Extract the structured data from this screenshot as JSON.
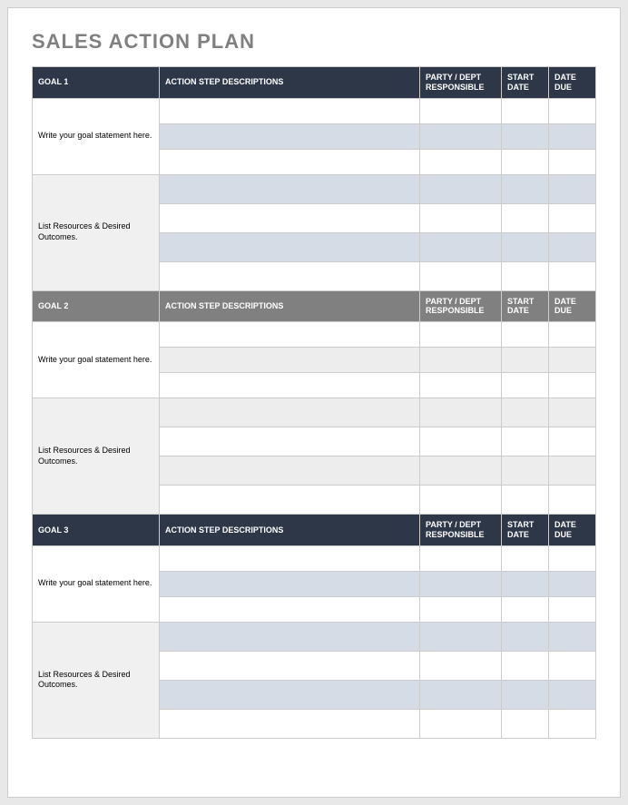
{
  "title": "SALES ACTION PLAN",
  "columns": {
    "action": "ACTION STEP DESCRIPTIONS",
    "party": "PARTY / DEPT RESPONSIBLE",
    "start": "START DATE",
    "due": "DATE DUE"
  },
  "sections": [
    {
      "goal_header": "GOAL 1",
      "header_bg": "#2d3748",
      "goal_label": "Write your goal statement here.",
      "resource_label": "List Resources & Desired Outcomes.",
      "alt_fill_goal": "#d5dce6",
      "alt_fill_resource": "#d5dce6",
      "goal_rows": 3,
      "resource_rows": 4
    },
    {
      "goal_header": "GOAL 2",
      "header_bg": "#808080",
      "goal_label": "Write your goal statement here.",
      "resource_label": "List Resources & Desired Outcomes.",
      "alt_fill_goal": "#ededed",
      "alt_fill_resource": "#ededed",
      "goal_rows": 3,
      "resource_rows": 4
    },
    {
      "goal_header": "GOAL 3",
      "header_bg": "#2d3748",
      "goal_label": "Write your goal statement here.",
      "resource_label": "List Resources & Desired Outcomes.",
      "alt_fill_goal": "#d5dce6",
      "alt_fill_resource": "#d5dce6",
      "goal_rows": 3,
      "resource_rows": 4
    }
  ],
  "row_bg_white": "#ffffff",
  "label_bg_resource": "#f0f0f0"
}
